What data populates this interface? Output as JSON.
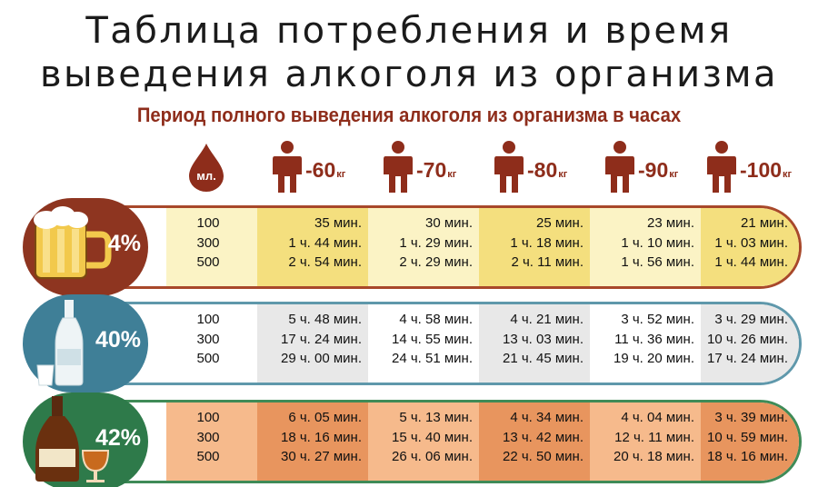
{
  "title_line1": "Таблица потребления и время",
  "title_line2": "выведения алкоголя из организма",
  "subtitle": "Период полного выведения алкоголя из организма в часах",
  "ml_label": "мл.",
  "weights": [
    {
      "value": "-60",
      "unit": "кг"
    },
    {
      "value": "-70",
      "unit": "кг"
    },
    {
      "value": "-80",
      "unit": "кг"
    },
    {
      "value": "-90",
      "unit": "кг"
    },
    {
      "value": "-100",
      "unit": "кг"
    }
  ],
  "rows": [
    {
      "percent": "4%",
      "icon": "beer-mug-icon",
      "volumes": [
        "100",
        "300",
        "500"
      ],
      "times": [
        [
          "35 мин.",
          "30 мин.",
          "25 мин.",
          "23 мин.",
          "21 мин."
        ],
        [
          "1 ч. 44 мин.",
          "1 ч. 29 мин.",
          "1 ч. 18 мин.",
          "1 ч. 10 мин.",
          "1 ч. 03 мин."
        ],
        [
          "2 ч. 54 мин.",
          "2 ч. 29 мин.",
          "2 ч. 11 мин.",
          "1 ч. 56 мин.",
          "1 ч. 44 мин."
        ]
      ]
    },
    {
      "percent": "40%",
      "icon": "vodka-bottle-icon",
      "volumes": [
        "100",
        "300",
        "500"
      ],
      "times": [
        [
          "5 ч. 48 мин.",
          "4 ч. 58 мин.",
          "4 ч. 21 мин.",
          "3 ч. 52 мин.",
          "3 ч. 29 мин."
        ],
        [
          "17 ч. 24 мин.",
          "14 ч. 55 мин.",
          "13 ч. 03 мин.",
          "11 ч. 36 мин.",
          "10 ч. 26 мин."
        ],
        [
          "29 ч. 00 мин.",
          "24 ч. 51 мин.",
          "21 ч. 45 мин.",
          "19 ч. 20 мин.",
          "17 ч. 24 мин."
        ]
      ]
    },
    {
      "percent": "42%",
      "icon": "cognac-bottle-icon",
      "volumes": [
        "100",
        "300",
        "500"
      ],
      "times": [
        [
          "6 ч. 05 мин.",
          "5 ч. 13 мин.",
          "4 ч. 34 мин.",
          "4 ч. 04 мин.",
          "3 ч. 39 мин."
        ],
        [
          "18 ч. 16 мин.",
          "15 ч. 40 мин.",
          "13 ч. 42 мин.",
          "12 ч. 11 мин.",
          "10 ч. 59 мин."
        ],
        [
          "30 ч. 27 мин.",
          "26 ч. 06 мин.",
          "22 ч. 50 мин.",
          "20 ч. 18 мин.",
          "18 ч. 16 мин."
        ]
      ]
    }
  ],
  "colors": {
    "title": "#1b1b1b",
    "accent": "#8e2d1b",
    "beer_badge": "#8e3520",
    "beer_band_border": "#a8482a",
    "beer_light": "#fbf3c5",
    "beer_shade": "#f4df7e",
    "vodka_badge": "#3f7f97",
    "vodka_band_border": "#5f98ab",
    "vodka_light": "#ffffff",
    "vodka_shade": "#e8e8e8",
    "cognac_badge": "#2e7a4a",
    "cognac_band_border": "#3f8b57",
    "cognac_light": "#f6ba8c",
    "cognac_shade": "#e8955e"
  }
}
